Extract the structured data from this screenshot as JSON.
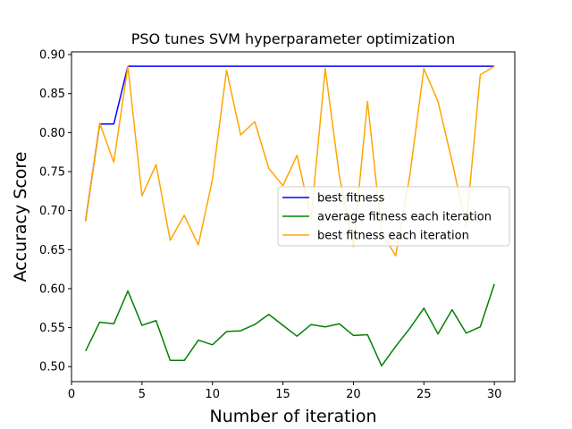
{
  "chart_data": {
    "type": "line",
    "title": "PSO tunes SVM hyperparameter optimization",
    "xlabel": "Number of iteration",
    "ylabel": "Accuracy Score",
    "xlim": [
      0,
      31.45
    ],
    "ylim": [
      0.4808,
      0.9035
    ],
    "xticks": [
      0,
      5,
      10,
      15,
      20,
      25,
      30
    ],
    "yticks": [
      0.5,
      0.55,
      0.6,
      0.65,
      0.7,
      0.75,
      0.8,
      0.85,
      0.9
    ],
    "x": [
      1,
      2,
      3,
      4,
      5,
      6,
      7,
      8,
      9,
      10,
      11,
      12,
      13,
      14,
      15,
      16,
      17,
      18,
      19,
      20,
      21,
      22,
      23,
      24,
      25,
      26,
      27,
      28,
      29,
      30
    ],
    "series": [
      {
        "name": "best fitness",
        "color": "#0000ff",
        "values": [
          0.687,
          0.811,
          0.811,
          0.885,
          0.885,
          0.885,
          0.885,
          0.885,
          0.885,
          0.885,
          0.885,
          0.885,
          0.885,
          0.885,
          0.885,
          0.885,
          0.885,
          0.885,
          0.885,
          0.885,
          0.885,
          0.885,
          0.885,
          0.885,
          0.885,
          0.885,
          0.885,
          0.885,
          0.885,
          0.885
        ]
      },
      {
        "name": "average fitness each iteration",
        "color": "#008000",
        "values": [
          0.52,
          0.557,
          0.555,
          0.597,
          0.553,
          0.559,
          0.508,
          0.508,
          0.534,
          0.528,
          0.545,
          0.546,
          0.554,
          0.567,
          0.553,
          0.539,
          0.554,
          0.551,
          0.555,
          0.54,
          0.541,
          0.501,
          0.526,
          0.549,
          0.575,
          0.542,
          0.573,
          0.543,
          0.551,
          0.606
        ]
      },
      {
        "name": "best fitness each iteration",
        "color": "#ffa500",
        "values": [
          0.686,
          0.812,
          0.762,
          0.885,
          0.719,
          0.759,
          0.662,
          0.694,
          0.656,
          0.74,
          0.88,
          0.797,
          0.814,
          0.754,
          0.732,
          0.771,
          0.69,
          0.882,
          0.745,
          0.654,
          0.84,
          0.672,
          0.642,
          0.745,
          0.882,
          0.84,
          0.763,
          0.68,
          0.874,
          0.885
        ]
      }
    ],
    "grid": false,
    "legend_position": "center-right"
  }
}
